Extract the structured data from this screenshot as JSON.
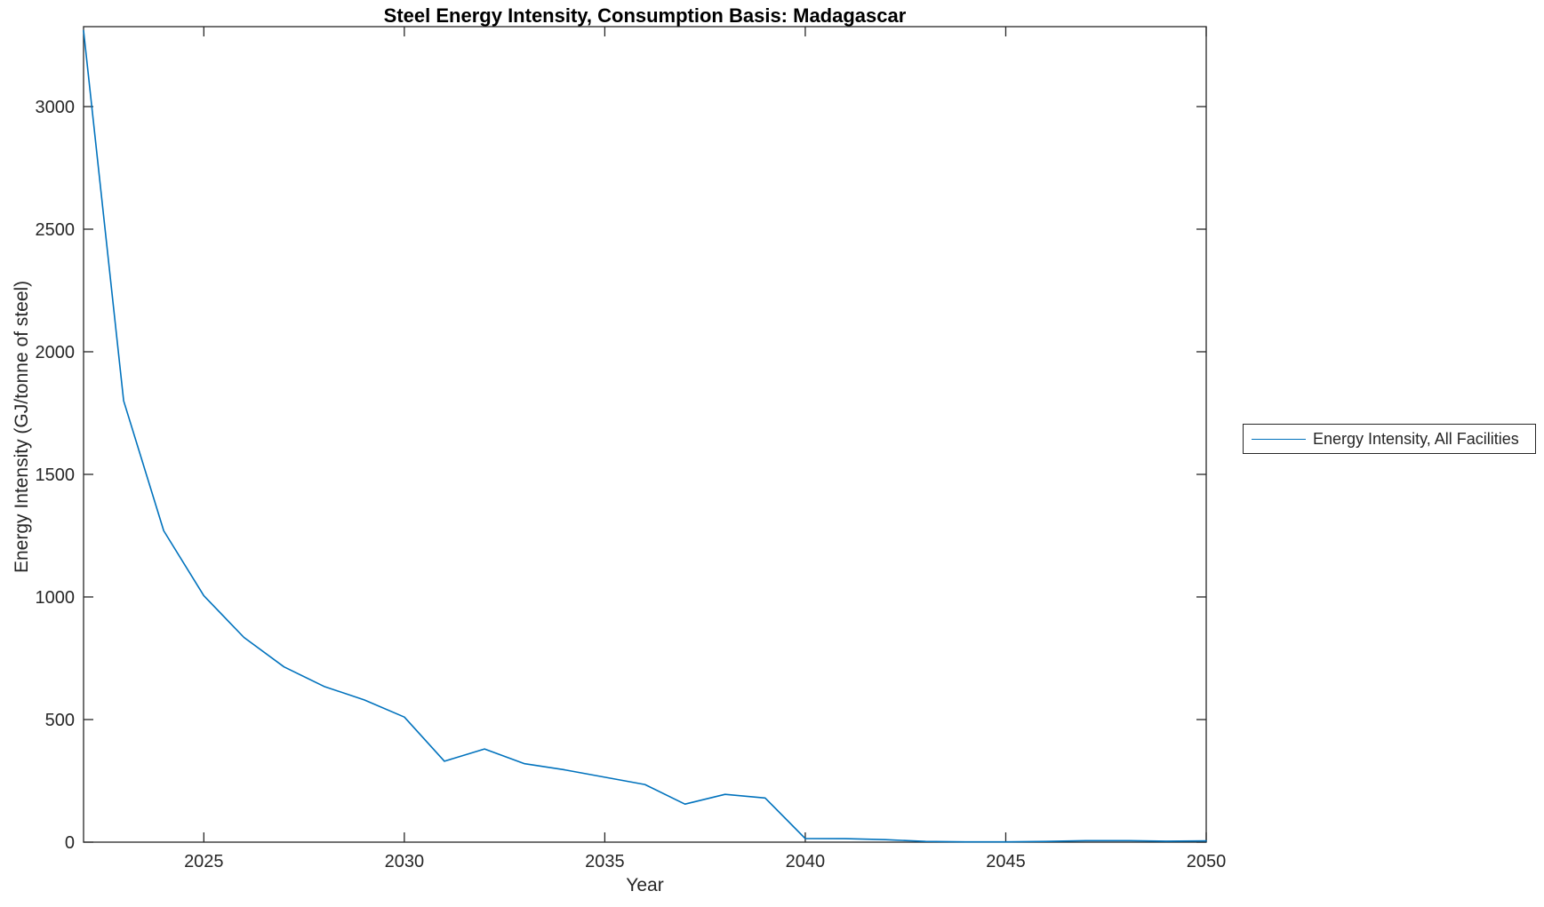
{
  "chart_data": {
    "type": "line",
    "title": "Steel Energy Intensity, Consumption Basis: Madagascar",
    "xlabel": "Year",
    "ylabel": "Energy Intensity (GJ/tonne of steel)",
    "grid": false,
    "legend_position": "right-outside",
    "legend_entries": [
      "Energy Intensity, All Facilities"
    ],
    "xlim": [
      2022,
      2050
    ],
    "ylim": [
      0,
      3326
    ],
    "xticks": [
      2025,
      2030,
      2035,
      2040,
      2045,
      2050
    ],
    "yticks": [
      0,
      500,
      1000,
      1500,
      2000,
      2500,
      3000
    ],
    "colors": {
      "line": "#0072BD",
      "axis": "#262626",
      "tick_label": "#262626",
      "background": "#ffffff"
    },
    "series": [
      {
        "name": "Energy Intensity, All Facilities",
        "color": "#0072BD",
        "x": [
          2022,
          2023,
          2024,
          2025,
          2026,
          2027,
          2028,
          2029,
          2030,
          2031,
          2032,
          2033,
          2034,
          2035,
          2036,
          2037,
          2038,
          2039,
          2040,
          2041,
          2042,
          2043,
          2044,
          2045,
          2046,
          2047,
          2048,
          2049,
          2050
        ],
        "y": [
          3310,
          1800,
          1270,
          1005,
          835,
          715,
          635,
          580,
          510,
          330,
          380,
          320,
          295,
          265,
          235,
          155,
          195,
          180,
          15,
          14,
          10,
          3,
          1,
          1,
          3,
          6,
          6,
          4,
          5
        ]
      }
    ]
  }
}
